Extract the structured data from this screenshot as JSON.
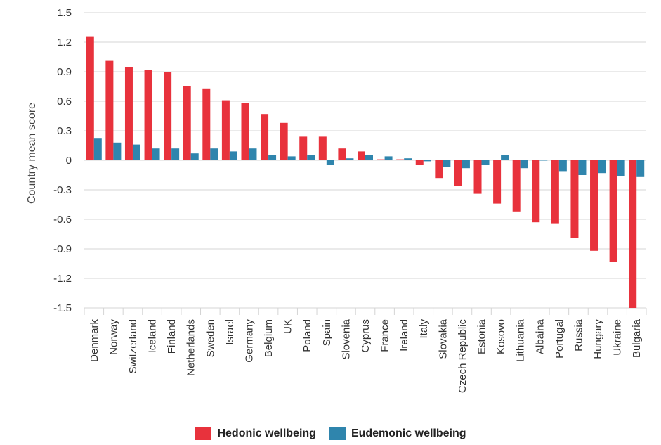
{
  "chart_data": {
    "type": "bar",
    "ylabel": "Country mean score",
    "ylim": [
      -1.5,
      1.5
    ],
    "yticks": [
      "1.5",
      "1.2",
      "0.9",
      "0.6",
      "0.3",
      "0",
      "-0.3",
      "-0.6",
      "-0.9",
      "-1.2",
      "-1.5"
    ],
    "grid": true,
    "legend_position": "bottom",
    "categories": [
      "Denmark",
      "Norway",
      "Switzerland",
      "Iceland",
      "Finland",
      "Netherlands",
      "Sweden",
      "Israel",
      "Germany",
      "Belgium",
      "UK",
      "Poland",
      "Spain",
      "Slovenia",
      "Cyprus",
      "France",
      "Ireland",
      "Italy",
      "Slovakia",
      "Czech Republic",
      "Estonia",
      "Kosovo",
      "Lithuania",
      "Albaina",
      "Portugal",
      "Russia",
      "Hungary",
      "Ukraine",
      "Bulgaria"
    ],
    "series": [
      {
        "name": "Hedonic wellbeing",
        "color": "#e8323c",
        "values": [
          1.26,
          1.01,
          0.95,
          0.92,
          0.9,
          0.75,
          0.73,
          0.61,
          0.58,
          0.47,
          0.38,
          0.24,
          0.24,
          0.12,
          0.09,
          0.01,
          0.01,
          -0.05,
          -0.18,
          -0.26,
          -0.34,
          -0.44,
          -0.52,
          -0.63,
          -0.64,
          -0.79,
          -0.92,
          -1.03,
          -1.5
        ]
      },
      {
        "name": "Eudemonic wellbeing",
        "color": "#2f85ad",
        "values": [
          0.22,
          0.18,
          0.16,
          0.12,
          0.12,
          0.07,
          0.12,
          0.09,
          0.12,
          0.05,
          0.04,
          0.05,
          -0.05,
          0.02,
          0.05,
          0.04,
          0.02,
          -0.01,
          -0.07,
          -0.08,
          -0.05,
          0.05,
          -0.08,
          0.0,
          -0.11,
          -0.15,
          -0.13,
          -0.16,
          -0.17
        ]
      }
    ]
  }
}
